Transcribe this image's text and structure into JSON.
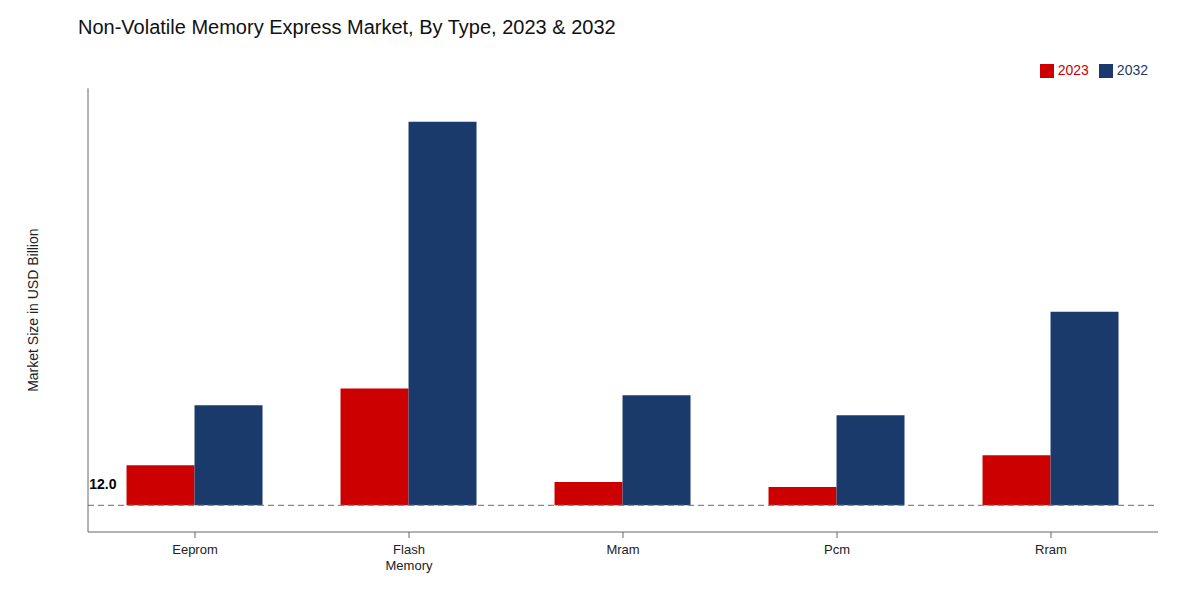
{
  "chart_data": {
    "type": "bar",
    "title": "Non-Volatile Memory Express Market, By Type, 2023 & 2032",
    "ylabel": "Market Size in USD Billion",
    "categories": [
      "Eeprom",
      "Flash\nMemory",
      "Mram",
      "Pcm",
      "Rram"
    ],
    "series": [
      {
        "name": "2023",
        "color": "#cc0000",
        "values": [
          12.0,
          35.0,
          7.0,
          5.5,
          15.0
        ]
      },
      {
        "name": "2032",
        "color": "#1a3a6b",
        "values": [
          30.0,
          115.0,
          33.0,
          27.0,
          58.0
        ]
      }
    ],
    "ylim": [
      -8,
      125
    ],
    "tick_labels": "x",
    "grid": false,
    "legend": "top",
    "annotations": [
      {
        "text": "12.0",
        "category": "Eeprom",
        "series": "2023"
      }
    ]
  }
}
